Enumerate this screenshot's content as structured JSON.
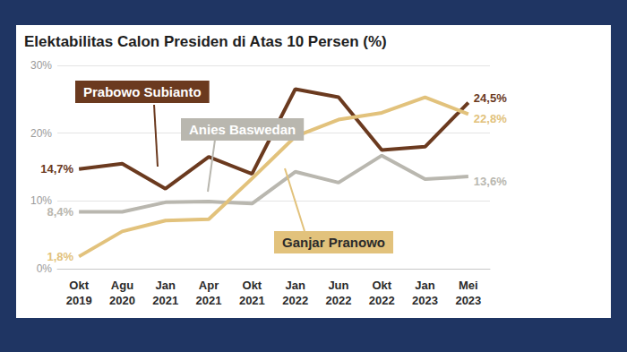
{
  "chart_data": {
    "type": "line",
    "title": "Elektabilitas Calon Presiden di Atas 10 Persen (%)",
    "categories": [
      "Okt 2019",
      "Agu 2020",
      "Jan 2021",
      "Apr 2021",
      "Okt 2021",
      "Jan 2022",
      "Jun 2022",
      "Okt 2022",
      "Jan 2023",
      "Mei 2023"
    ],
    "series": [
      {
        "name": "Prabowo Subianto",
        "color": "#6b3a1f",
        "values": [
          14.7,
          15.5,
          11.8,
          16.5,
          14.0,
          26.5,
          25.3,
          17.5,
          18.0,
          24.5
        ],
        "value_labels": [
          "14,7%",
          null,
          null,
          null,
          null,
          null,
          null,
          null,
          null,
          "24,5%"
        ]
      },
      {
        "name": "Anies Baswedan",
        "color": "#b9b7af",
        "values": [
          8.4,
          8.4,
          9.8,
          9.9,
          9.6,
          14.3,
          12.7,
          16.7,
          13.2,
          13.6
        ],
        "value_labels": [
          "8,4%",
          null,
          null,
          null,
          null,
          null,
          null,
          null,
          null,
          "13,6%"
        ]
      },
      {
        "name": "Ganjar Pranowo",
        "color": "#e2c27c",
        "values": [
          1.8,
          5.5,
          7.1,
          7.3,
          13.3,
          19.5,
          22.0,
          23.0,
          25.3,
          22.8
        ],
        "value_labels": [
          "1,8%",
          null,
          null,
          null,
          null,
          null,
          null,
          null,
          null,
          "22,8%"
        ]
      }
    ],
    "ylim": [
      0,
      30
    ],
    "yticks": [
      {
        "value": 0,
        "label": "0%"
      },
      {
        "value": 10,
        "label": "10%"
      },
      {
        "value": 20,
        "label": "20%"
      },
      {
        "value": 30,
        "label": "30%"
      }
    ],
    "grid": true
  }
}
